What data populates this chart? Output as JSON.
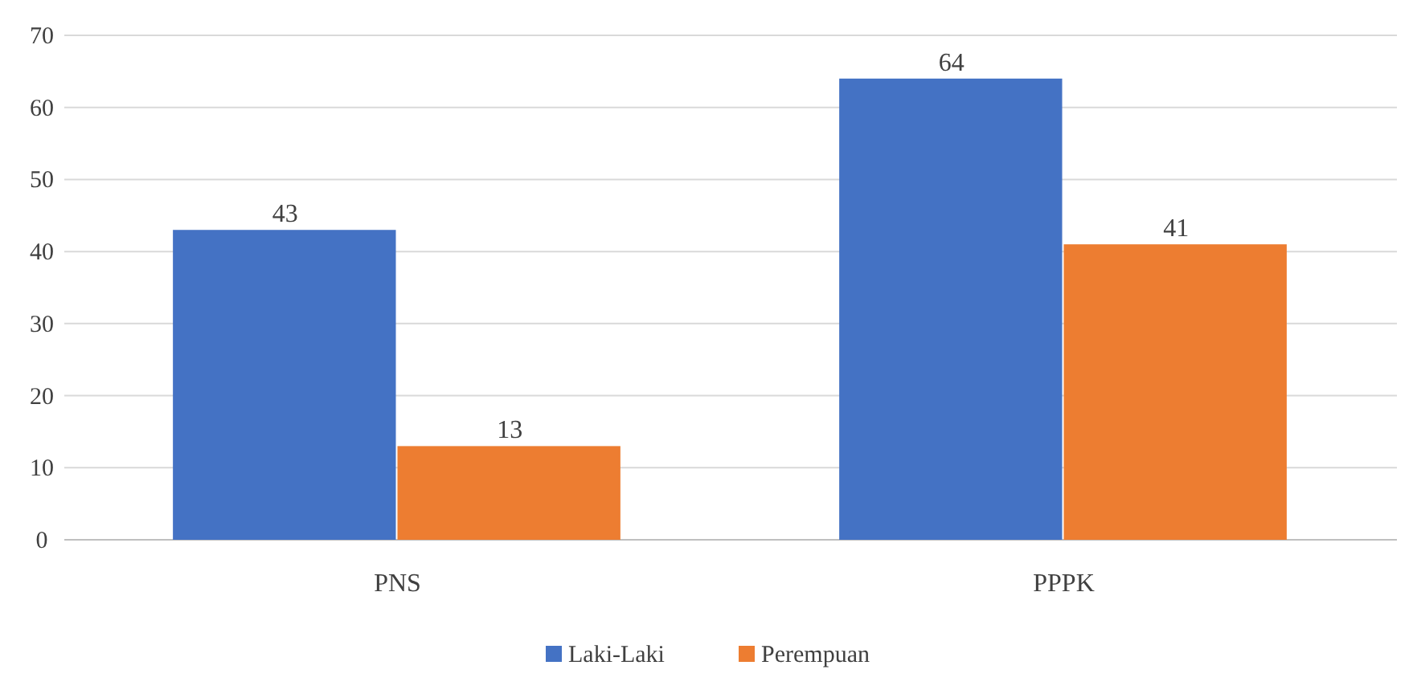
{
  "chart_data": {
    "type": "bar",
    "categories": [
      "PNS",
      "PPPK"
    ],
    "series": [
      {
        "name": "Laki-Laki",
        "color": "#4472c4",
        "values": [
          43,
          64
        ]
      },
      {
        "name": "Perempuan",
        "color": "#ed7d31",
        "values": [
          13,
          41
        ]
      }
    ],
    "ylim": [
      0,
      70
    ],
    "yticks": [
      0,
      10,
      20,
      30,
      40,
      50,
      60,
      70
    ],
    "grid": "y",
    "legend": "bottom",
    "data_labels": true
  }
}
